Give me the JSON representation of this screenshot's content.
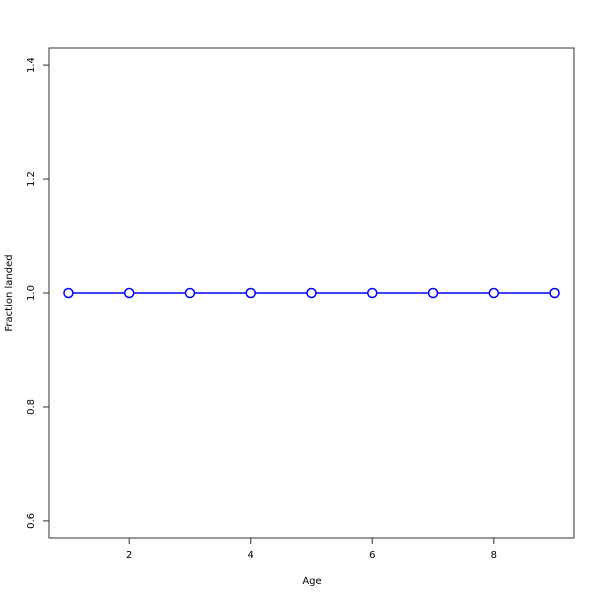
{
  "chart_data": {
    "type": "line",
    "title": "",
    "xlabel": "Age",
    "ylabel": "Fraction landed",
    "x": [
      1,
      2,
      3,
      4,
      5,
      6,
      7,
      8,
      9
    ],
    "series": [
      {
        "values": [
          1,
          1,
          1,
          1,
          1,
          1,
          1,
          1,
          1
        ],
        "color": "#0000ff",
        "marker": "open-circle"
      }
    ],
    "xlim": [
      0.68,
      9.32
    ],
    "ylim": [
      0.57,
      1.43
    ],
    "xticks": [
      2,
      4,
      6,
      8
    ],
    "yticks": [
      0.6,
      0.8,
      1.0,
      1.2,
      1.4
    ],
    "xtick_labels": [
      "2",
      "4",
      "6",
      "8"
    ],
    "ytick_labels": [
      "0.6",
      "0.8",
      "1.0",
      "1.2",
      "1.4"
    ],
    "grid": false
  }
}
